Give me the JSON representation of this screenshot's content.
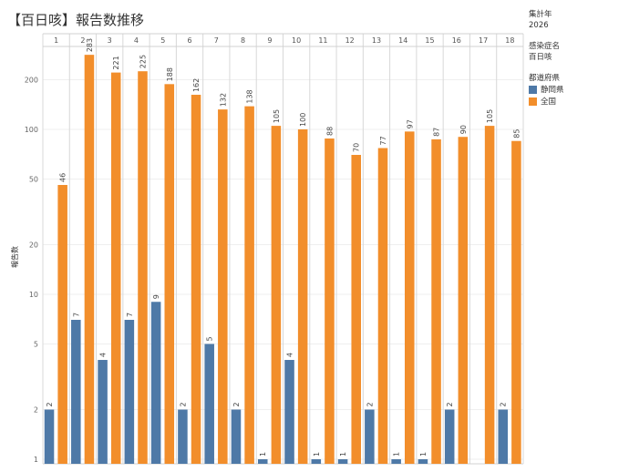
{
  "title": "【百日咳】報告数推移",
  "filters": {
    "year_label": "集計年",
    "year_value": "2026",
    "disease_label": "感染症名",
    "disease_value": "百日咳",
    "region_label": "都道府県"
  },
  "chart_data": {
    "type": "bar",
    "categories": [
      "1",
      "2",
      "3",
      "4",
      "5",
      "6",
      "7",
      "8",
      "9",
      "10",
      "11",
      "12",
      "13",
      "14",
      "15",
      "16",
      "17",
      "18"
    ],
    "series": [
      {
        "name": "静岡県",
        "color": "#4e79a7",
        "values": [
          2,
          7,
          4,
          7,
          9,
          2,
          5,
          2,
          1,
          4,
          1,
          1,
          2,
          1,
          1,
          2,
          null,
          2
        ]
      },
      {
        "name": "全国",
        "color": "#f28e2b",
        "values": [
          46,
          283,
          221,
          225,
          188,
          162,
          132,
          138,
          105,
          100,
          88,
          70,
          77,
          97,
          87,
          90,
          105,
          85
        ]
      }
    ],
    "ylabel": "報告数",
    "yscale": "log",
    "yticks": [
      1,
      2,
      5,
      10,
      20,
      50,
      100,
      200
    ],
    "ylim": [
      1,
      310
    ],
    "grid": true,
    "legend_position": "right"
  }
}
